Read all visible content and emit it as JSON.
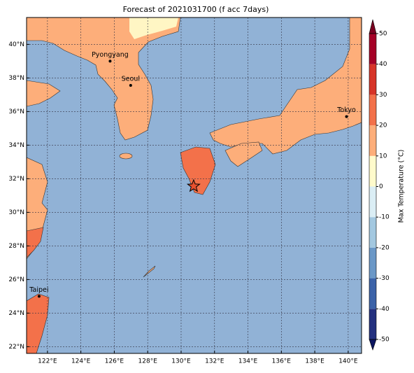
{
  "title": "Forecast of 2021031700 (f acc 7days)",
  "map": {
    "lonlim": [
      120.75,
      140.8
    ],
    "latlim": [
      21.6,
      41.6
    ],
    "lonticks": [
      {
        "value": 122,
        "label": "122°E"
      },
      {
        "value": 124,
        "label": "124°E"
      },
      {
        "value": 126,
        "label": "126°E"
      },
      {
        "value": 128,
        "label": "128°E"
      },
      {
        "value": 130,
        "label": "130°E"
      },
      {
        "value": 132,
        "label": "132°E"
      },
      {
        "value": 134,
        "label": "134°E"
      },
      {
        "value": 136,
        "label": "136°E"
      },
      {
        "value": 138,
        "label": "138°E"
      },
      {
        "value": 140,
        "label": "140°E"
      }
    ],
    "latticks": [
      {
        "value": 22,
        "label": "22°N"
      },
      {
        "value": 24,
        "label": "24°N"
      },
      {
        "value": 26,
        "label": "26°N"
      },
      {
        "value": 28,
        "label": "28°N"
      },
      {
        "value": 30,
        "label": "30°N"
      },
      {
        "value": 32,
        "label": "32°N"
      },
      {
        "value": 34,
        "label": "34°N"
      },
      {
        "value": 36,
        "label": "36°N"
      },
      {
        "value": 38,
        "label": "38°N"
      },
      {
        "value": 40,
        "label": "40°N"
      }
    ],
    "cities": [
      {
        "name": "Pyongyang",
        "lon": 125.75,
        "lat": 39.0
      },
      {
        "name": "Seoul",
        "lon": 126.98,
        "lat": 37.56
      },
      {
        "name": "Tokyo",
        "lon": 139.9,
        "lat": 35.7
      },
      {
        "name": "Taipei",
        "lon": 121.5,
        "lat": 25.0
      }
    ],
    "marker": {
      "lon": 130.75,
      "lat": 31.56
    }
  },
  "colorbar": {
    "label": "Max Temperature (°C)",
    "lim": [
      -50,
      50
    ],
    "ticks": [
      -50,
      -40,
      -30,
      -20,
      -10,
      0,
      10,
      20,
      30,
      40,
      50
    ],
    "colors": [
      "#23307f",
      "#3b62a8",
      "#6b98c7",
      "#a3c8e0",
      "#dbeef5",
      "#fffbcc",
      "#fdae7a",
      "#f3714a",
      "#d73428",
      "#a50026"
    ],
    "under": "#0c1560",
    "over": "#7a0020"
  }
}
